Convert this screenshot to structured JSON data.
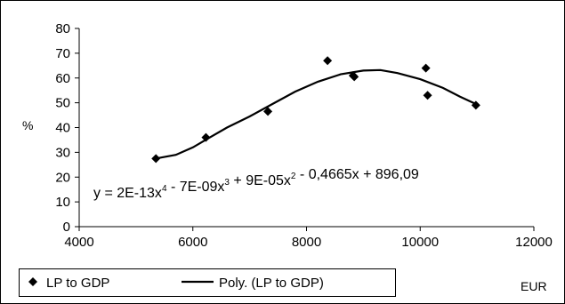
{
  "chart_data": {
    "type": "scatter",
    "title": "",
    "xlabel": "EUR",
    "ylabel": "%",
    "xlim": [
      4000,
      12000
    ],
    "ylim": [
      0,
      80
    ],
    "x_ticks": [
      4000,
      6000,
      8000,
      10000,
      12000
    ],
    "y_ticks": [
      0,
      10,
      20,
      30,
      40,
      50,
      60,
      70,
      80
    ],
    "x_tick_labels": [
      "4000",
      "6000",
      "8000",
      "10000",
      "12000"
    ],
    "y_tick_labels": [
      "0",
      "10",
      "20",
      "30",
      "40",
      "50",
      "60",
      "70",
      "80"
    ],
    "grid": false,
    "legend_position": "bottom-left",
    "series": [
      {
        "name": "LP to GDP",
        "marker": "diamond",
        "color": "#000000",
        "points": [
          {
            "x": 5350,
            "y": 27.5
          },
          {
            "x": 6230,
            "y": 36
          },
          {
            "x": 7320,
            "y": 46.5
          },
          {
            "x": 8370,
            "y": 67
          },
          {
            "x": 8820,
            "y": 61
          },
          {
            "x": 8840,
            "y": 60.5
          },
          {
            "x": 10100,
            "y": 64
          },
          {
            "x": 10130,
            "y": 53
          },
          {
            "x": 10980,
            "y": 49
          }
        ]
      },
      {
        "name": "Poly. (LP to GDP)",
        "type": "trendline",
        "color": "#000000",
        "points": [
          {
            "x": 5350,
            "y": 27.5
          },
          {
            "x": 5700,
            "y": 29
          },
          {
            "x": 6000,
            "y": 32
          },
          {
            "x": 6300,
            "y": 36
          },
          {
            "x": 6600,
            "y": 40
          },
          {
            "x": 7000,
            "y": 44.5
          },
          {
            "x": 7400,
            "y": 49.5
          },
          {
            "x": 7800,
            "y": 54.5
          },
          {
            "x": 8200,
            "y": 58.5
          },
          {
            "x": 8600,
            "y": 61.5
          },
          {
            "x": 9000,
            "y": 63
          },
          {
            "x": 9300,
            "y": 63.2
          },
          {
            "x": 9600,
            "y": 62
          },
          {
            "x": 10000,
            "y": 59.5
          },
          {
            "x": 10400,
            "y": 56
          },
          {
            "x": 10700,
            "y": 52.5
          },
          {
            "x": 10980,
            "y": 49.5
          }
        ]
      }
    ],
    "equation_label": "y = 2E-13x",
    "equation_parts": [
      {
        "text": "y = 2E-13x"
      },
      {
        "text": "4",
        "sup": true
      },
      {
        "text": " - 7E-09x"
      },
      {
        "text": "3",
        "sup": true
      },
      {
        "text": " + 9E-05x"
      },
      {
        "text": "2",
        "sup": true
      },
      {
        "text": " - 0,4665x + 896,09"
      }
    ]
  }
}
